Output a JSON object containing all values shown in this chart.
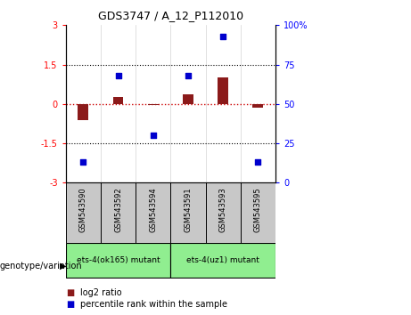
{
  "title": "GDS3747 / A_12_P112010",
  "samples": [
    "GSM543590",
    "GSM543592",
    "GSM543594",
    "GSM543591",
    "GSM543593",
    "GSM543595"
  ],
  "log2_ratio": [
    -0.6,
    0.28,
    -0.05,
    0.35,
    1.0,
    -0.15
  ],
  "percentile_rank": [
    13,
    68,
    30,
    68,
    93,
    13
  ],
  "ylim_left": [
    -3,
    3
  ],
  "ylim_right": [
    0,
    100
  ],
  "yticks_left": [
    -3,
    -1.5,
    0,
    1.5,
    3
  ],
  "yticks_right": [
    0,
    25,
    50,
    75,
    100
  ],
  "ytick_labels_left": [
    "-3",
    "-1.5",
    "0",
    "1.5",
    "3"
  ],
  "ytick_labels_right": [
    "0",
    "25",
    "50",
    "75",
    "100%"
  ],
  "hlines": [
    1.5,
    -1.5
  ],
  "bar_color": "#8B1A1A",
  "scatter_color": "#0000CD",
  "zero_line_color": "#CC0000",
  "group1_label": "ets-4(ok165) mutant",
  "group2_label": "ets-4(uz1) mutant",
  "group1_indices": [
    0,
    1,
    2
  ],
  "group2_indices": [
    3,
    4,
    5
  ],
  "group_bg_color": "#90EE90",
  "sample_bg_color": "#C8C8C8",
  "legend_red_label": "log2 ratio",
  "legend_blue_label": "percentile rank within the sample",
  "genotype_label": "genotype/variation"
}
